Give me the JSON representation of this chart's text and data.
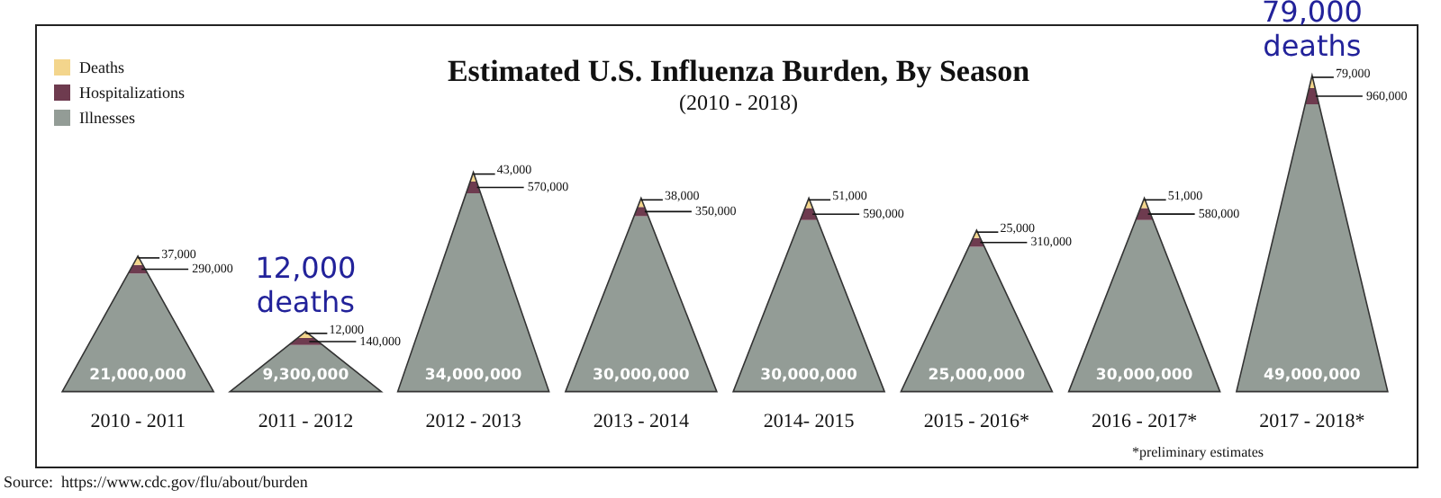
{
  "chart_data": {
    "type": "other",
    "title": "Estimated U.S. Influenza Burden, By Season",
    "subtitle": "(2010 - 2018)",
    "categories": [
      "2010 - 2011",
      "2011 - 2012",
      "2012 - 2013",
      "2013 - 2014",
      "2014- 2015",
      "2015 - 2016*",
      "2016 - 2017*",
      "2017 - 2018*"
    ],
    "series": [
      {
        "name": "Illnesses",
        "color": "#939c96",
        "values": [
          21000000,
          9300000,
          34000000,
          30000000,
          30000000,
          25000000,
          30000000,
          49000000
        ],
        "value_labels": [
          "21,000,000",
          "9,300,000",
          "34,000,000",
          "30,000,000",
          "30,000,000",
          "25,000,000",
          "30,000,000",
          "49,000,000"
        ]
      },
      {
        "name": "Hospitalizations",
        "color": "#6e3b4f",
        "values": [
          290000,
          140000,
          570000,
          350000,
          590000,
          310000,
          580000,
          960000
        ],
        "value_labels": [
          "290,000",
          "140,000",
          "570,000",
          "350,000",
          "590,000",
          "310,000",
          "580,000",
          "960,000"
        ]
      },
      {
        "name": "Deaths",
        "color": "#f3d58c",
        "values": [
          37000,
          12000,
          43000,
          38000,
          51000,
          25000,
          51000,
          79000
        ],
        "value_labels": [
          "37,000",
          "12,000",
          "43,000",
          "38,000",
          "51,000",
          "25,000",
          "51,000",
          "79,000"
        ]
      }
    ],
    "legend": "top left",
    "annotations": [
      {
        "text": "12,000 deaths",
        "x": "2011 - 2012"
      },
      {
        "text": "79,000 deaths",
        "x": "2017 - 2018*"
      },
      "*preliminary estimates",
      "Source:  https://www.cdc.gov/flu/about/burden"
    ]
  }
}
